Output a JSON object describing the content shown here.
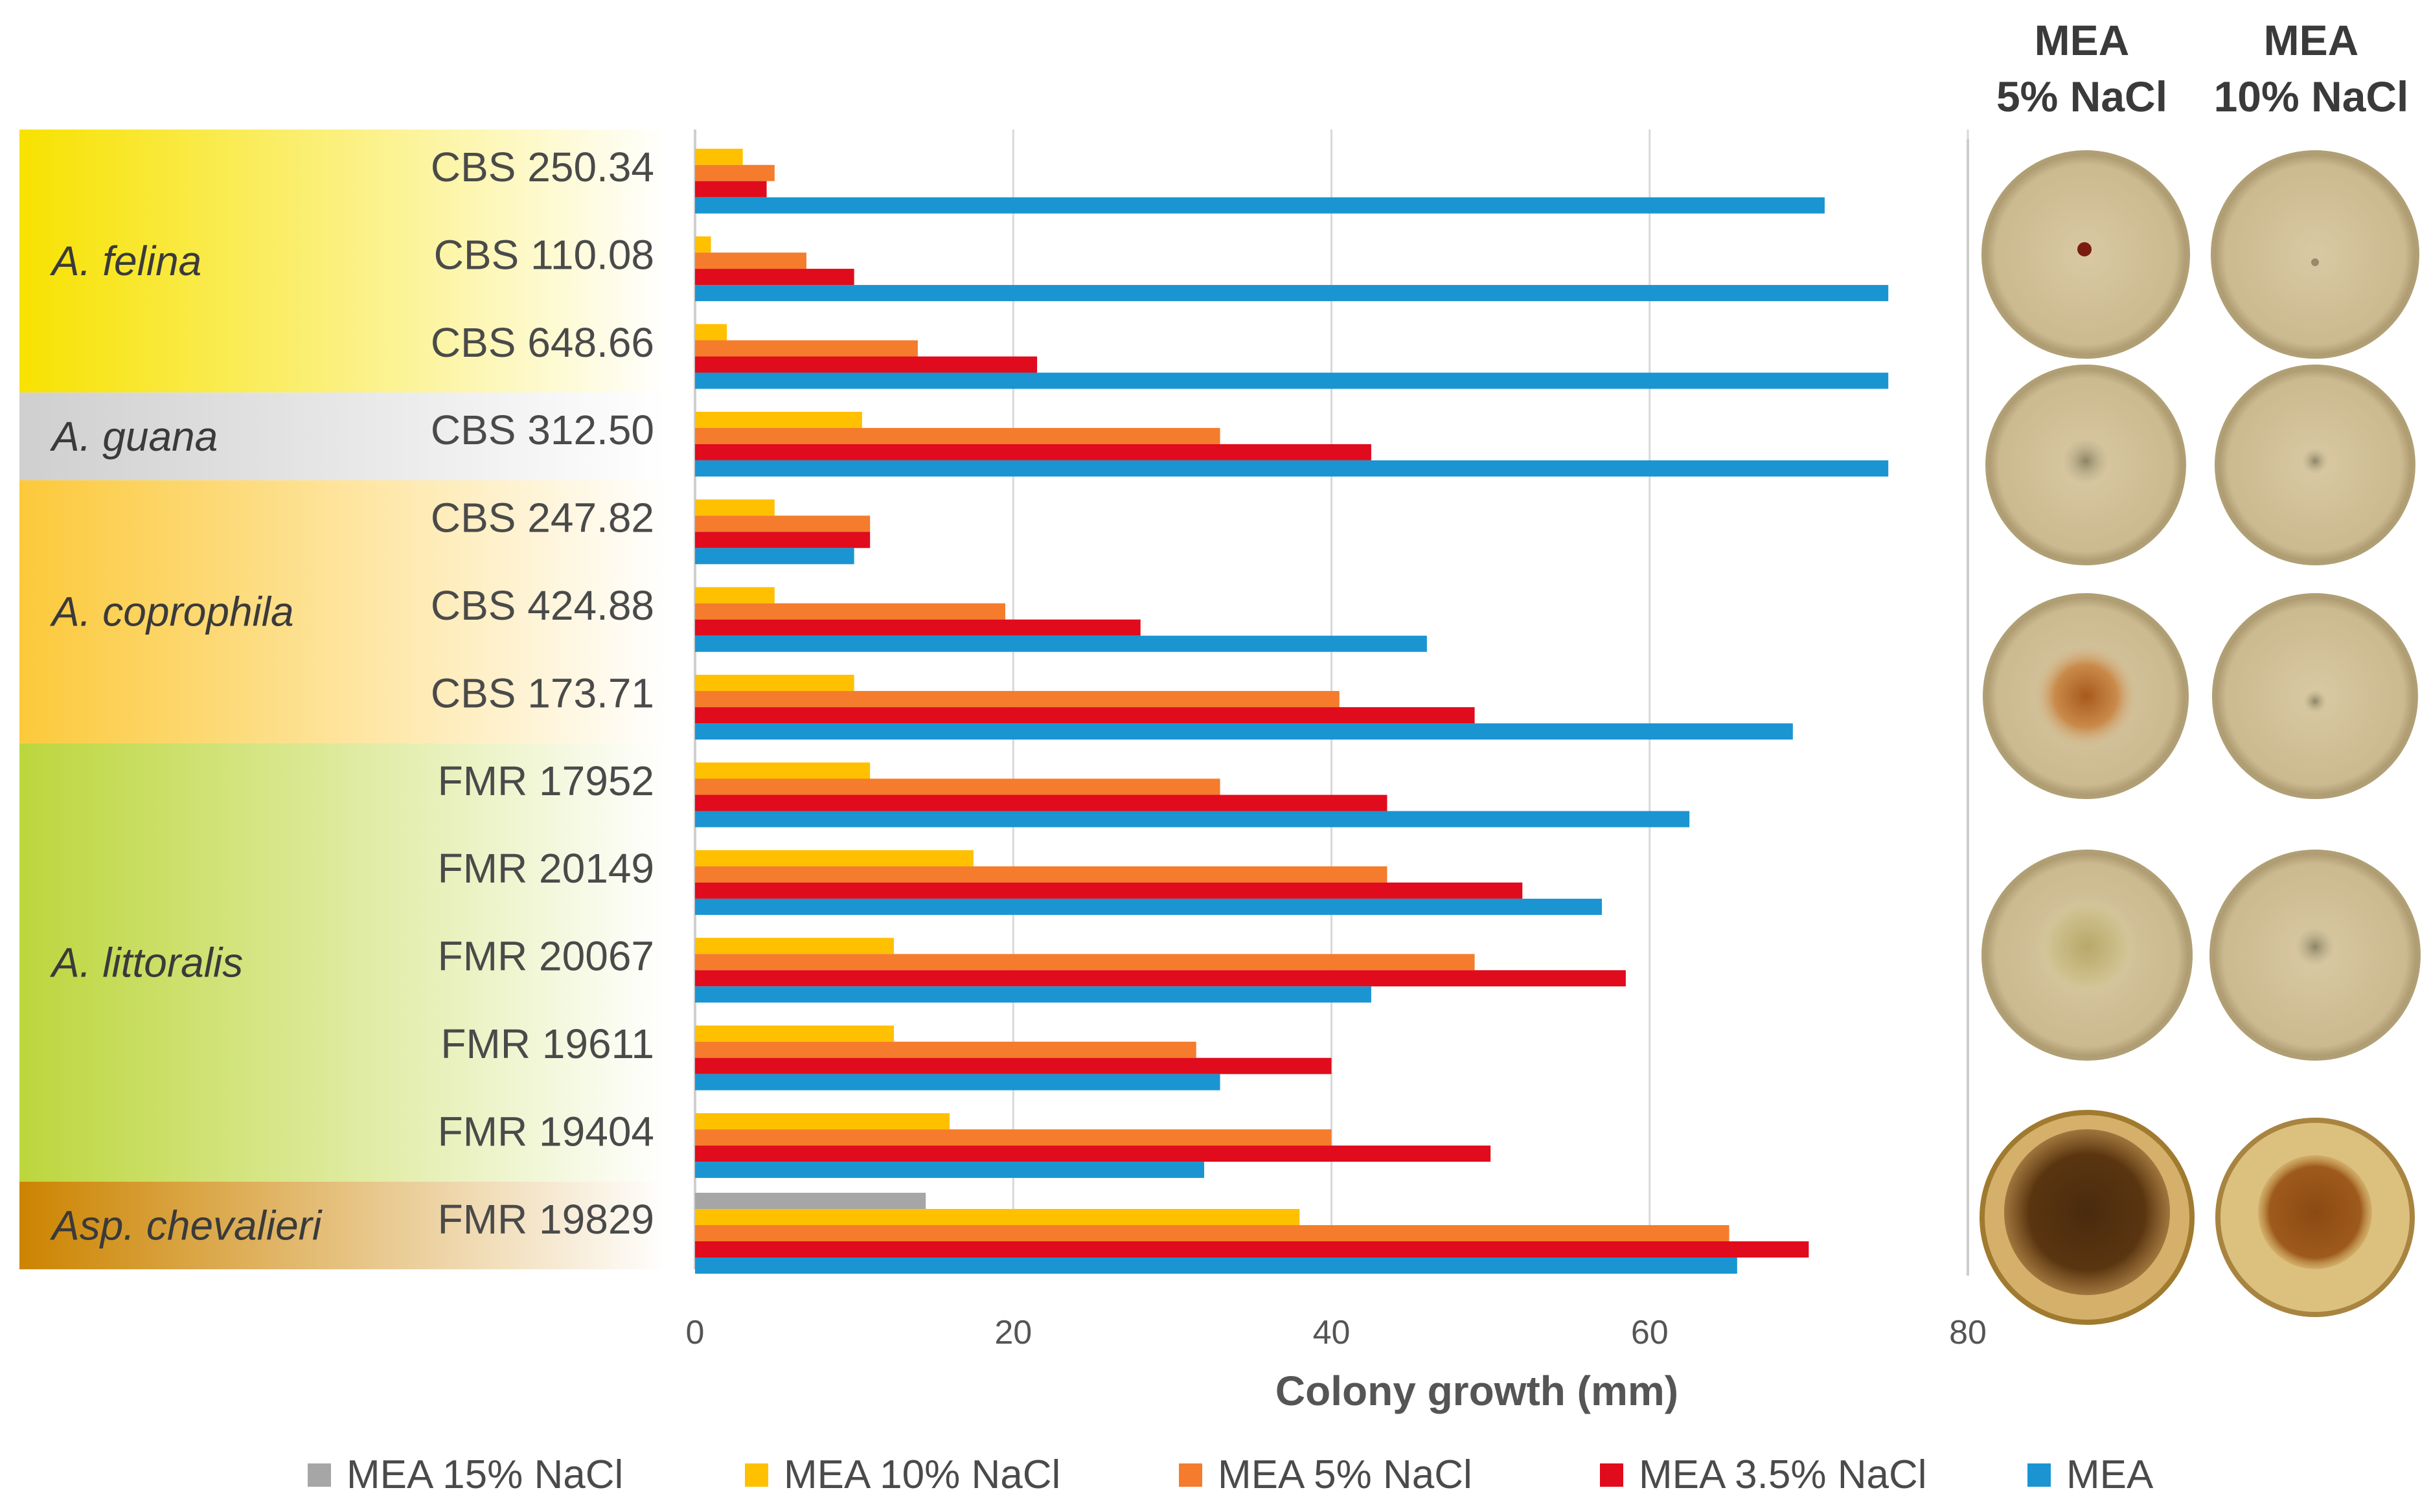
{
  "chart_data": {
    "type": "bar",
    "orientation": "horizontal",
    "xlabel": "Colony growth (mm)",
    "xlim": [
      0,
      80
    ],
    "xticks": [
      "0",
      "20",
      "40",
      "60",
      "80"
    ],
    "grid": true,
    "legend_position": "bottom",
    "categories": [
      "CBS 250.34",
      "CBS 110.08",
      "CBS 648.66",
      "CBS 312.50",
      "CBS 247.82",
      "CBS 424.88",
      "CBS 173.71",
      "FMR 17952",
      "FMR 20149",
      "FMR 20067",
      "FMR 19611",
      "FMR 19404",
      "FMR 19829"
    ],
    "groups": [
      {
        "label": "A. felina",
        "members": [
          "CBS 250.34",
          "CBS 110.08",
          "CBS 648.66"
        ],
        "color": "#f7e200"
      },
      {
        "label": "A. guana",
        "members": [
          "CBS 312.50"
        ],
        "color": "#cfcfcf"
      },
      {
        "label": "A. coprophila",
        "members": [
          "CBS 247.82",
          "CBS 424.88",
          "CBS 173.71"
        ],
        "color": "#fcc93a"
      },
      {
        "label": "A. littoralis",
        "members": [
          "FMR 17952",
          "FMR 20149",
          "FMR 20067",
          "FMR 19611",
          "FMR 19404"
        ],
        "color": "#bcd63c"
      },
      {
        "label": "Asp. chevalieri",
        "members": [
          "FMR 19829"
        ],
        "color": "#cc8400"
      }
    ],
    "series": [
      {
        "name": "MEA 15% NaCl",
        "color": "#a6a6a6",
        "values": [
          0,
          0,
          0,
          0,
          0,
          0,
          0,
          0,
          0,
          0,
          0,
          0,
          14.5
        ]
      },
      {
        "name": "MEA 10% NaCl",
        "color": "#ffc000",
        "values": [
          3,
          1,
          2,
          10.5,
          5,
          5,
          10,
          11,
          17.5,
          12.5,
          12.5,
          16,
          38
        ]
      },
      {
        "name": "MEA 5% NaCl",
        "color": "#f47c2c",
        "values": [
          5,
          7,
          14,
          33,
          11,
          19.5,
          40.5,
          33,
          43.5,
          49,
          31.5,
          40,
          65
        ]
      },
      {
        "name": "MEA 3.5% NaCl",
        "color": "#e00b1c",
        "values": [
          4.5,
          10,
          21.5,
          42.5,
          11,
          28,
          49,
          43.5,
          52,
          58.5,
          40,
          50,
          70
        ]
      },
      {
        "name": "MEA",
        "color": "#1a95d2",
        "values": [
          71,
          75,
          75,
          75,
          10,
          46,
          69,
          62.5,
          57,
          42.5,
          33,
          32,
          65.5
        ]
      }
    ],
    "plate_headers": [
      {
        "line1": "MEA",
        "line2": "5% NaCl"
      },
      {
        "line1": "MEA",
        "line2": "10% NaCl"
      }
    ]
  }
}
